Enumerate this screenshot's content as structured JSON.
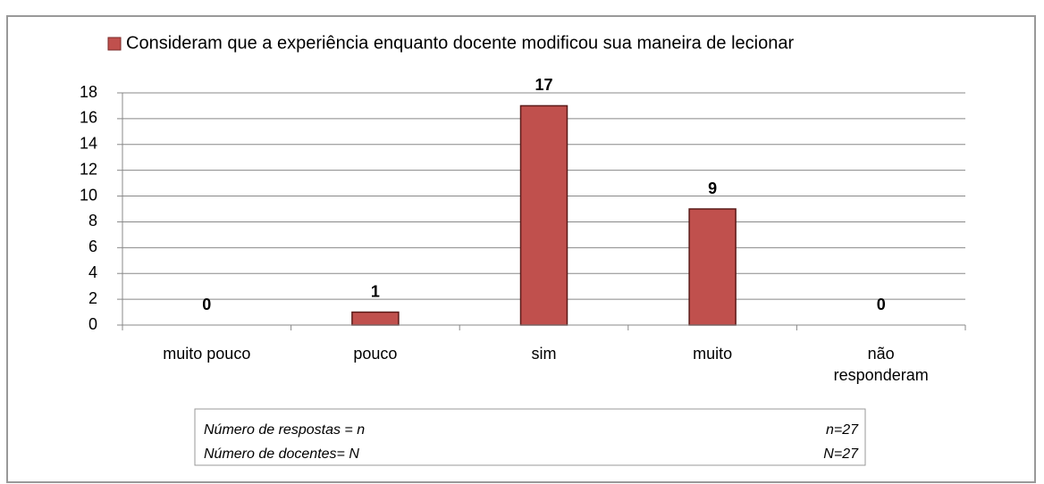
{
  "chart_data": {
    "type": "bar",
    "legend": "Consideram que a experiência enquanto docente modificou sua maneira de lecionar",
    "categories": [
      "muito pouco",
      "pouco",
      "sim",
      "muito",
      "não responderam"
    ],
    "values": [
      0,
      1,
      17,
      9,
      0
    ],
    "color": "#c0504d",
    "ylim": [
      0,
      18
    ],
    "yticks": [
      0,
      2,
      4,
      6,
      8,
      10,
      12,
      14,
      16,
      18
    ],
    "grid": true,
    "note": [
      [
        "Número de respostas = n",
        "n=27"
      ],
      [
        "Número de docentes= N",
        "N=27"
      ]
    ]
  }
}
